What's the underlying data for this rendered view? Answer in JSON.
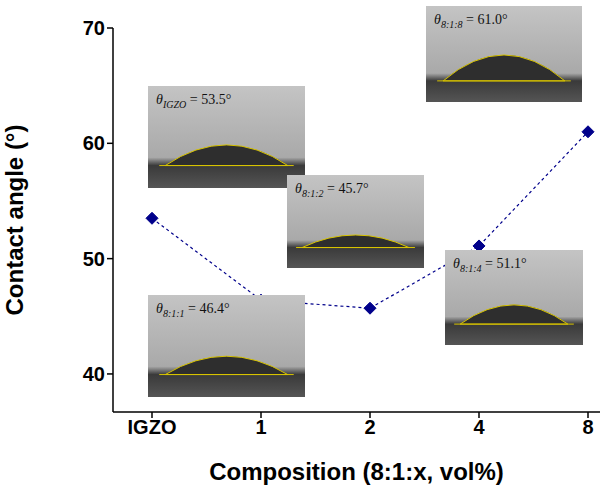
{
  "chart_data": {
    "type": "line",
    "x_label": "Composition (8:1:x, vol%)",
    "y_label": "Contact angle (°)",
    "categories": [
      "IGZO",
      "1",
      "2",
      "4",
      "8"
    ],
    "values": [
      53.5,
      46.4,
      45.7,
      51.1,
      61.0
    ],
    "color": "#00008b",
    "marker": "diamond",
    "line_style": "dashed",
    "ylim": [
      36.7,
      70
    ],
    "yticks": [
      40,
      50,
      60,
      70
    ],
    "grid": false,
    "annotations": [
      {
        "category": "IGZO",
        "symbol": "θ",
        "subscript": "IGZO",
        "text": "= 53.5°"
      },
      {
        "category": "1",
        "symbol": "θ",
        "subscript": "8:1:1",
        "text": "= 46.4°"
      },
      {
        "category": "2",
        "symbol": "θ",
        "subscript": "8:1:2",
        "text": "= 45.7°"
      },
      {
        "category": "4",
        "symbol": "θ",
        "subscript": "8:1:4",
        "text": "= 51.1°"
      },
      {
        "category": "8",
        "symbol": "θ",
        "subscript": "8:1:8",
        "text": "= 61.0°"
      }
    ]
  }
}
